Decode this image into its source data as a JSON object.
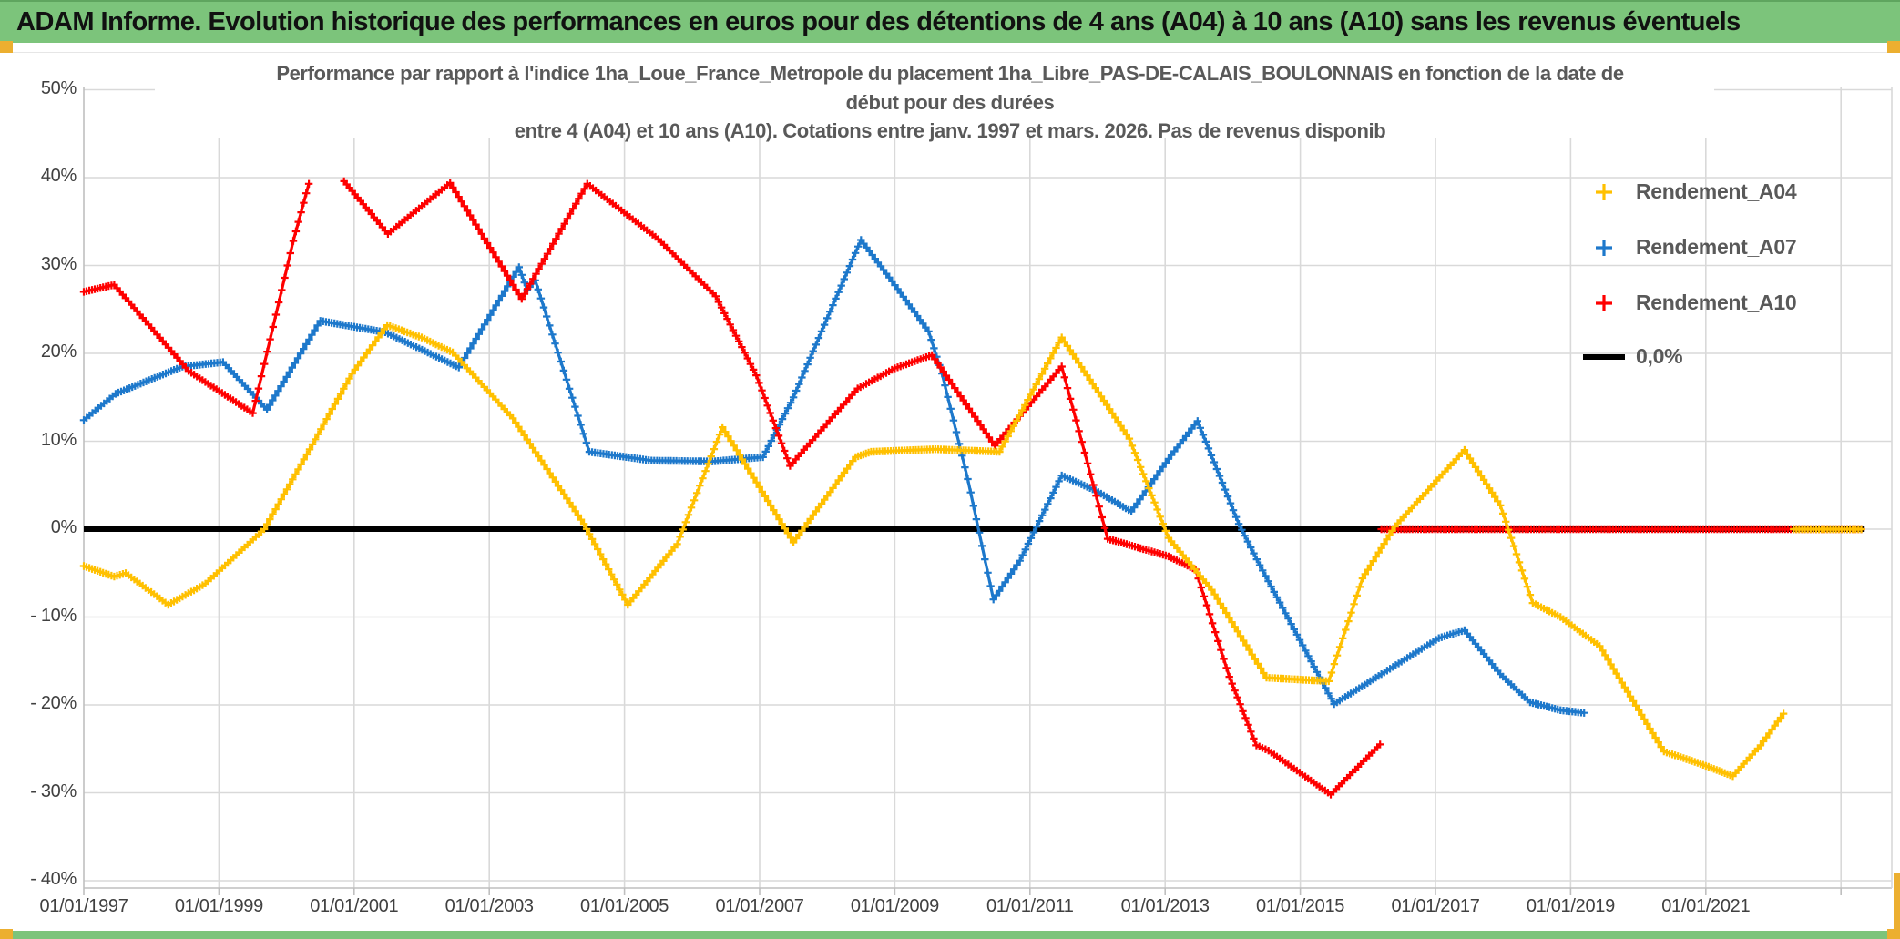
{
  "header": {
    "title": "ADAM Informe. Evolution historique des performances en euros pour des détentions de 4 ans (A04) à 10 ans (A10) sans les revenus éventuels"
  },
  "colors": {
    "banner_green": "#7CC47B",
    "accent_gold": "#ECAF30",
    "grid": "#D9D9D9",
    "axis": "#BFBFBF",
    "text_gray": "#595959",
    "tick_gray": "#404040",
    "a04": "#FFC000",
    "a07": "#1D78CB",
    "a10": "#FE0000",
    "zero_line": "#000000"
  },
  "chart": {
    "title_lines": [
      "Performance par rapport à l'indice 1ha_Loue_France_Metropole  du placement 1ha_Libre_PAS-DE-CALAIS_BOULONNAIS en fonction de la date de",
      "début pour des durées",
      "entre 4 (A04) et 10 ans (A10). Cotations entre janv. 1997 et mars. 2026. Pas de revenus disponib"
    ],
    "legend": [
      {
        "label": "Rendement_A04",
        "color": "#FFC000",
        "marker": "plus"
      },
      {
        "label": "Rendement_A07",
        "color": "#1D78CB",
        "marker": "plus"
      },
      {
        "label": "Rendement_A10",
        "color": "#FE0000",
        "marker": "plus"
      },
      {
        "label": "0,0%",
        "color": "#000000",
        "marker": "line"
      }
    ],
    "y_ticks": [
      {
        "label": "50%",
        "value": 50
      },
      {
        "label": "40%",
        "value": 40
      },
      {
        "label": "30%",
        "value": 30
      },
      {
        "label": "20%",
        "value": 20
      },
      {
        "label": "10%",
        "value": 10
      },
      {
        "label": "0%",
        "value": 0
      },
      {
        "label": " - 10%",
        "value": -10
      },
      {
        "label": " - 20%",
        "value": -20
      },
      {
        "label": " - 30%",
        "value": -30
      },
      {
        "label": " - 40%",
        "value": -40
      }
    ],
    "x_ticks": [
      {
        "label": "01/01/1997",
        "year": 1997
      },
      {
        "label": "01/01/1999",
        "year": 1999
      },
      {
        "label": "01/01/2001",
        "year": 2001
      },
      {
        "label": "01/01/2003",
        "year": 2003
      },
      {
        "label": "01/01/2005",
        "year": 2005
      },
      {
        "label": "01/01/2007",
        "year": 2007
      },
      {
        "label": "01/01/2009",
        "year": 2009
      },
      {
        "label": "01/01/2011",
        "year": 2011
      },
      {
        "label": "01/01/2013",
        "year": 2013
      },
      {
        "label": "01/01/2015",
        "year": 2015
      },
      {
        "label": "01/01/2017",
        "year": 2017
      },
      {
        "label": "01/01/2019",
        "year": 2019
      },
      {
        "label": "01/01/2021",
        "year": 2021
      }
    ]
  },
  "chart_data": {
    "type": "line",
    "x_unit": "decimal_year",
    "x_range": [
      1997,
      2023.75
    ],
    "ylim": [
      -40,
      50
    ],
    "grid": true,
    "legend_position": "right-top",
    "series": [
      {
        "name": "Rendement_A04",
        "color": "#FFC000",
        "segments": [
          [
            [
              1997.0,
              -4.2
            ],
            [
              1997.45,
              -5.4
            ],
            [
              1997.62,
              -5.0
            ],
            [
              1998.25,
              -8.6
            ],
            [
              1998.8,
              -6.2
            ],
            [
              1999.67,
              0.0
            ],
            [
              2000.3,
              8.5
            ],
            [
              2000.97,
              17.7
            ],
            [
              2001.49,
              23.2
            ],
            [
              2002.0,
              21.8
            ],
            [
              2002.46,
              20.1
            ],
            [
              2003.35,
              12.6
            ],
            [
              2004.4,
              0.6
            ],
            [
              2005.05,
              -8.6
            ],
            [
              2005.78,
              -1.7
            ],
            [
              2006.45,
              11.6
            ],
            [
              2007.5,
              -1.5
            ],
            [
              2008.42,
              8.2
            ],
            [
              2008.65,
              8.8
            ],
            [
              2009.6,
              9.1
            ],
            [
              2010.55,
              8.8
            ],
            [
              2011.47,
              21.8
            ],
            [
              2012.47,
              10.3
            ],
            [
              2013.05,
              -1.0
            ],
            [
              2013.69,
              -6.9
            ],
            [
              2014.5,
              -16.9
            ],
            [
              2015.42,
              -17.3
            ],
            [
              2015.92,
              -5.6
            ],
            [
              2016.4,
              0.3
            ],
            [
              2017.43,
              9.0
            ],
            [
              2017.96,
              2.7
            ],
            [
              2018.44,
              -8.4
            ],
            [
              2018.85,
              -10.0
            ],
            [
              2019.43,
              -13.3
            ],
            [
              2020.38,
              -25.3
            ],
            [
              2020.92,
              -26.7
            ],
            [
              2021.4,
              -28.1
            ],
            [
              2021.81,
              -24.6
            ],
            [
              2022.15,
              -21.0
            ]
          ],
          [
            [
              2022.3,
              0.0
            ],
            [
              2023.3,
              0.0
            ]
          ]
        ]
      },
      {
        "name": "Rendement_A07",
        "color": "#1D78CB",
        "segments": [
          [
            [
              1997.0,
              12.4
            ],
            [
              1997.47,
              15.4
            ],
            [
              1998.46,
              18.5
            ],
            [
              1999.06,
              19.0
            ],
            [
              1999.71,
              13.6
            ],
            [
              2000.5,
              23.7
            ],
            [
              2001.46,
              22.4
            ],
            [
              2002.55,
              18.4
            ],
            [
              2003.44,
              29.8
            ],
            [
              2003.56,
              27.2
            ],
            [
              2003.68,
              28.3
            ],
            [
              2004.48,
              8.8
            ],
            [
              2005.4,
              7.8
            ],
            [
              2006.3,
              7.7
            ],
            [
              2007.05,
              8.2
            ],
            [
              2007.5,
              15.0
            ],
            [
              2008.0,
              24.0
            ],
            [
              2008.5,
              32.9
            ],
            [
              2008.96,
              28.2
            ],
            [
              2009.5,
              22.5
            ],
            [
              2009.7,
              17.7
            ],
            [
              2010.08,
              5.7
            ],
            [
              2010.46,
              -8.0
            ],
            [
              2010.85,
              -3.6
            ],
            [
              2011.47,
              6.1
            ],
            [
              2011.97,
              4.4
            ],
            [
              2012.5,
              2.0
            ],
            [
              2013.05,
              8.0
            ],
            [
              2013.48,
              12.3
            ],
            [
              2014.09,
              0.6
            ],
            [
              2014.4,
              -4.1
            ],
            [
              2015.5,
              -19.9
            ],
            [
              2016.2,
              -16.5
            ],
            [
              2017.05,
              -12.4
            ],
            [
              2017.43,
              -11.5
            ],
            [
              2017.96,
              -16.5
            ],
            [
              2018.4,
              -19.7
            ],
            [
              2018.85,
              -20.6
            ],
            [
              2019.2,
              -20.9
            ]
          ]
        ]
      },
      {
        "name": "Rendement_A10",
        "color": "#FE0000",
        "segments": [
          [
            [
              1997.0,
              27.0
            ],
            [
              1997.45,
              27.8
            ],
            [
              1998.55,
              18.0
            ],
            [
              1999.5,
              13.2
            ],
            [
              2000.1,
              32.8
            ],
            [
              2000.33,
              39.3
            ]
          ],
          [
            [
              2000.85,
              39.6
            ],
            [
              2001.5,
              33.6
            ],
            [
              2002.42,
              39.4
            ],
            [
              2003.48,
              26.2
            ],
            [
              2004.45,
              39.3
            ],
            [
              2005.5,
              33.0
            ],
            [
              2006.35,
              26.5
            ],
            [
              2006.95,
              17.5
            ],
            [
              2007.45,
              7.2
            ],
            [
              2008.45,
              16.0
            ],
            [
              2009.0,
              18.3
            ],
            [
              2009.55,
              19.8
            ],
            [
              2010.48,
              9.5
            ],
            [
              2011.47,
              18.5
            ],
            [
              2012.15,
              -1.1
            ],
            [
              2012.47,
              -1.8
            ],
            [
              2013.05,
              -3.1
            ],
            [
              2013.45,
              -4.6
            ],
            [
              2013.95,
              -16.8
            ],
            [
              2014.35,
              -24.6
            ],
            [
              2014.53,
              -25.2
            ],
            [
              2015.45,
              -30.2
            ],
            [
              2016.18,
              -24.5
            ]
          ],
          [
            [
              2016.2,
              0.0
            ],
            [
              2023.3,
              0.0
            ]
          ]
        ]
      },
      {
        "name": "0,0%",
        "color": "#000000",
        "style": "solid_line",
        "segments": [
          [
            [
              1997.0,
              0.0
            ],
            [
              2023.35,
              0.0
            ]
          ]
        ]
      }
    ]
  }
}
